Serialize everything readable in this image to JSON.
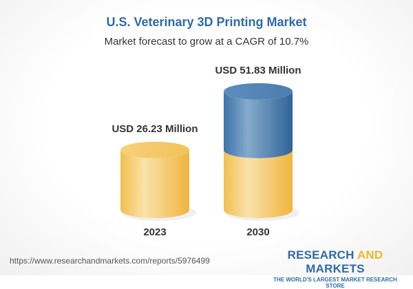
{
  "title": "U.S. Veterinary 3D Printing Market",
  "subtitle": "Market forecast to grow at a CAGR of 10.7%",
  "chart_data": {
    "type": "bar",
    "style": "3d-cylinder",
    "categories": [
      "2023",
      "2030"
    ],
    "values": [
      26.23,
      51.83
    ],
    "data_labels": [
      "USD 26.23 Million",
      "USD 51.83 Million"
    ],
    "unit": "USD Million",
    "colors": {
      "base": "#f3c55a",
      "growth": "#3f77ad"
    },
    "grid": false,
    "legend": "none"
  },
  "footer": {
    "url": "https://www.researchandmarkets.com/reports/5976499",
    "logo_part1": "RESEARCH ",
    "logo_part2": "AND",
    "logo_part3": " MARKETS",
    "tagline": "THE WORLD'S LARGEST MARKET RESEARCH STORE"
  }
}
